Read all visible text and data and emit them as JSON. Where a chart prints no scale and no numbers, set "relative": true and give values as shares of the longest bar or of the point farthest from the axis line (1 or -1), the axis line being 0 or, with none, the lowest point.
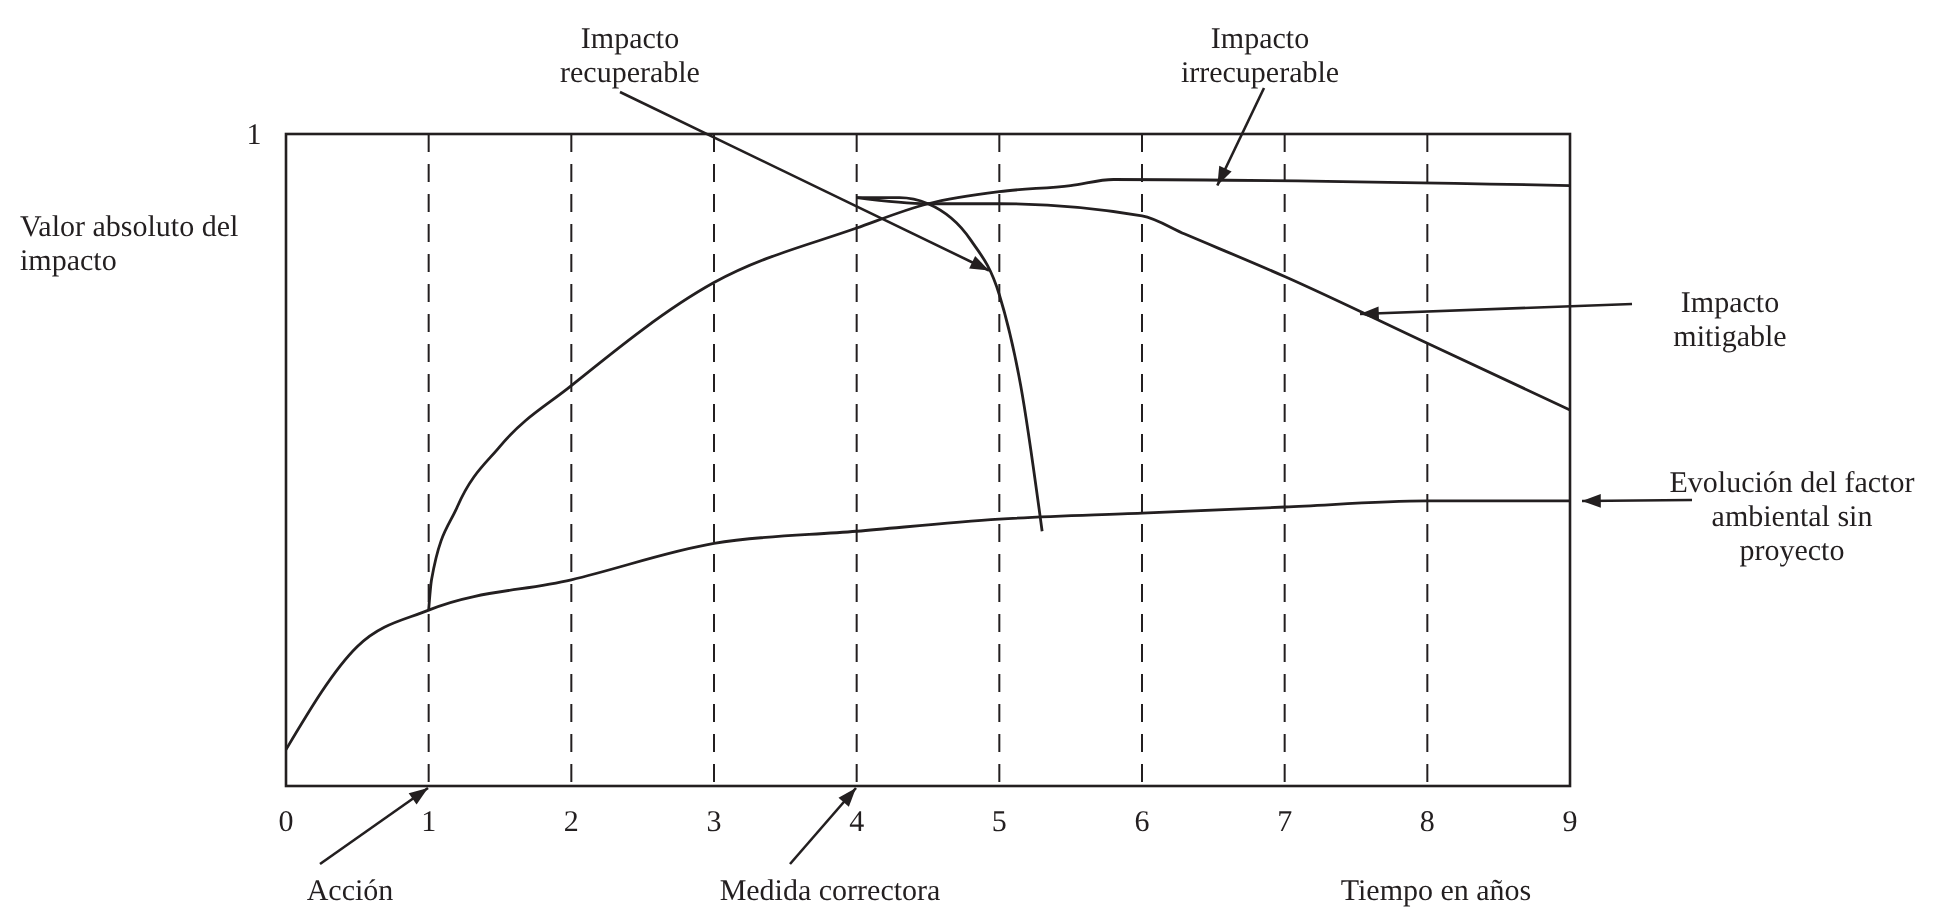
{
  "chart_data": {
    "type": "line",
    "xlabel": "Tiempo en años",
    "ylabel": "Valor absoluto del impacto",
    "xlim": [
      0,
      9
    ],
    "xticks": [
      0,
      1,
      2,
      3,
      4,
      5,
      6,
      7,
      8,
      9
    ],
    "relative": true,
    "grid": "x",
    "legend": false,
    "marker": "none",
    "line_style": "solid",
    "series": [
      {
        "color": "#231f20",
        "x": [
          0,
          0.5,
          1,
          2,
          3,
          4,
          5,
          6,
          7,
          8,
          9
        ],
        "values": [
          0.06,
          0.23,
          0.29,
          0.34,
          0.4,
          0.42,
          0.44,
          0.45,
          0.46,
          0.47,
          0.47
        ]
      },
      {
        "color": "#231f20",
        "x": [
          1,
          1.02,
          1.2,
          1.5,
          2,
          3,
          4,
          4.5,
          5,
          5.5,
          5.8,
          9
        ],
        "values": [
          0.29,
          0.34,
          0.46,
          0.56,
          0.66,
          0.83,
          0.92,
          0.96,
          0.98,
          0.99,
          1,
          0.99
        ]
      },
      {
        "color": "#231f20",
        "x": [
          4,
          4.5,
          5,
          6,
          6.3,
          7,
          8,
          9
        ],
        "values": [
          0.97,
          0.96,
          0.96,
          0.94,
          0.91,
          0.84,
          0.73,
          0.62
        ]
      },
      {
        "color": "#231f20",
        "x": [
          4,
          4.3,
          4.5,
          4.8,
          5,
          5.15,
          5.3
        ],
        "values": [
          0.97,
          0.97,
          0.96,
          0.9,
          0.81,
          0.66,
          0.42
        ]
      }
    ],
    "annotations": [
      {
        "text": "Impacto recuperable",
        "x": 4.9,
        "y": 0.85
      },
      {
        "text": "Impacto irrecuperable",
        "x": 6.5,
        "y": 0.99
      },
      "Impacto mitigable",
      {
        "text": "Evolución del factor ambiental sin proyecto",
        "x": 9,
        "y": 0.47
      },
      "Acción",
      "Medida correctora",
      "1"
    ]
  }
}
